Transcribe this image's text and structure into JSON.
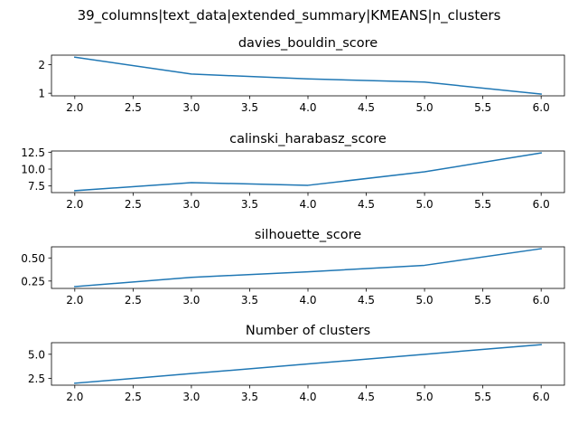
{
  "figure": {
    "suptitle": "39_columns|text_data|extended_summary|KMEANS|n_clusters"
  },
  "colors": {
    "line": "#1f77b4"
  },
  "chart_data": [
    {
      "type": "line",
      "title": "davies_bouldin_score",
      "x": [
        2.0,
        3.0,
        4.0,
        5.0,
        6.0
      ],
      "values": [
        2.26,
        1.67,
        1.5,
        1.39,
        0.97
      ],
      "xlim": [
        1.8,
        6.2
      ],
      "ylim": [
        0.91,
        2.33
      ],
      "xticks": [
        2.0,
        2.5,
        3.0,
        3.5,
        4.0,
        4.5,
        5.0,
        5.5,
        6.0
      ],
      "xtick_labels": [
        "2.0",
        "2.5",
        "3.0",
        "3.5",
        "4.0",
        "4.5",
        "5.0",
        "5.5",
        "6.0"
      ],
      "yticks": [
        1,
        2
      ],
      "ytick_labels": [
        "1",
        "2"
      ],
      "grid": false
    },
    {
      "type": "line",
      "title": "calinski_harabasz_score",
      "x": [
        2.0,
        3.0,
        4.0,
        5.0,
        6.0
      ],
      "values": [
        6.8,
        8.0,
        7.6,
        9.6,
        12.4
      ],
      "xlim": [
        1.8,
        6.2
      ],
      "ylim": [
        6.52,
        12.68
      ],
      "xticks": [
        2.0,
        2.5,
        3.0,
        3.5,
        4.0,
        4.5,
        5.0,
        5.5,
        6.0
      ],
      "xtick_labels": [
        "2.0",
        "2.5",
        "3.0",
        "3.5",
        "4.0",
        "4.5",
        "5.0",
        "5.5",
        "6.0"
      ],
      "yticks": [
        7.5,
        10.0,
        12.5
      ],
      "ytick_labels": [
        "7.5",
        "10.0",
        "12.5"
      ],
      "grid": false
    },
    {
      "type": "line",
      "title": "silhouette_score",
      "x": [
        2.0,
        3.0,
        4.0,
        5.0,
        6.0
      ],
      "values": [
        0.19,
        0.29,
        0.35,
        0.42,
        0.6
      ],
      "xlim": [
        1.8,
        6.2
      ],
      "ylim": [
        0.17,
        0.62
      ],
      "xticks": [
        2.0,
        2.5,
        3.0,
        3.5,
        4.0,
        4.5,
        5.0,
        5.5,
        6.0
      ],
      "xtick_labels": [
        "2.0",
        "2.5",
        "3.0",
        "3.5",
        "4.0",
        "4.5",
        "5.0",
        "5.5",
        "6.0"
      ],
      "yticks": [
        0.25,
        0.5
      ],
      "ytick_labels": [
        "0.25",
        "0.50"
      ],
      "grid": false
    },
    {
      "type": "line",
      "title": "Number of clusters",
      "x": [
        2.0,
        3.0,
        4.0,
        5.0,
        6.0
      ],
      "values": [
        2,
        3,
        4,
        5,
        6
      ],
      "xlim": [
        1.8,
        6.2
      ],
      "ylim": [
        1.8,
        6.2
      ],
      "xticks": [
        2.0,
        2.5,
        3.0,
        3.5,
        4.0,
        4.5,
        5.0,
        5.5,
        6.0
      ],
      "xtick_labels": [
        "2.0",
        "2.5",
        "3.0",
        "3.5",
        "4.0",
        "4.5",
        "5.0",
        "5.5",
        "6.0"
      ],
      "yticks": [
        2.5,
        5.0
      ],
      "ytick_labels": [
        "2.5",
        "5.0"
      ],
      "grid": false
    }
  ]
}
